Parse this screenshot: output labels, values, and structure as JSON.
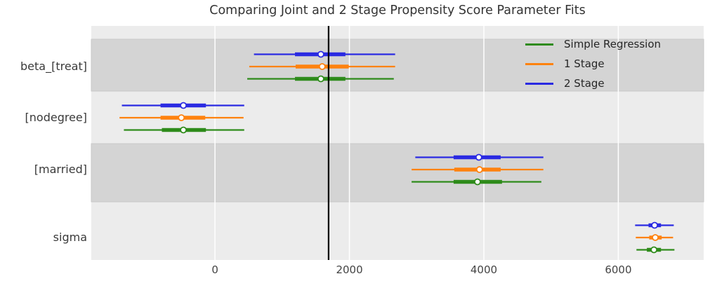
{
  "chart_data": {
    "type": "scatter",
    "subtype": "forest-plot-with-error-bars",
    "title": "Comparing Joint and 2 Stage Propensity Score Parameter Fits",
    "xlabel": "",
    "ylabel": "",
    "categories": [
      "beta_[treat]",
      "[nodegree]",
      "[married]",
      "sigma"
    ],
    "series": [
      {
        "name": "Simple Regression",
        "color": "#2e8b1a",
        "values": [
          {
            "lo": 480,
            "q1": 1190,
            "median": 1575,
            "q3": 1940,
            "hi": 2660
          },
          {
            "lo": -1355,
            "q1": -790,
            "median": -470,
            "q3": -135,
            "hi": 435
          },
          {
            "lo": 2925,
            "q1": 3550,
            "median": 3905,
            "q3": 4270,
            "hi": 4855
          },
          {
            "lo": 6270,
            "q1": 6425,
            "median": 6530,
            "q3": 6635,
            "hi": 6835
          }
        ]
      },
      {
        "name": "1 Stage",
        "color": "#ff820e",
        "values": [
          {
            "lo": 510,
            "q1": 1200,
            "median": 1595,
            "q3": 1990,
            "hi": 2680
          },
          {
            "lo": -1420,
            "q1": -810,
            "median": -500,
            "q3": -145,
            "hi": 425
          },
          {
            "lo": 2925,
            "q1": 3560,
            "median": 3935,
            "q3": 4250,
            "hi": 4885
          },
          {
            "lo": 6260,
            "q1": 6460,
            "median": 6550,
            "q3": 6645,
            "hi": 6815
          }
        ]
      },
      {
        "name": "2 Stage",
        "color": "#2a2ae2",
        "values": [
          {
            "lo": 580,
            "q1": 1190,
            "median": 1575,
            "q3": 1940,
            "hi": 2680
          },
          {
            "lo": -1385,
            "q1": -810,
            "median": -470,
            "q3": -135,
            "hi": 435
          },
          {
            "lo": 2980,
            "q1": 3550,
            "median": 3925,
            "q3": 4250,
            "hi": 4885
          },
          {
            "lo": 6250,
            "q1": 6450,
            "median": 6540,
            "q3": 6635,
            "hi": 6825
          }
        ]
      }
    ],
    "x_ticks": [
      0,
      2000,
      4000,
      6000
    ],
    "xlim": [
      -1840,
      7270
    ],
    "reference_line_x": 1690,
    "reference_line_color": "#000000",
    "grid": "vertical white gridlines on gray background",
    "legend_position": "upper right, no frame",
    "band_colors": {
      "light": "#ececec",
      "dark": "#d4d4d4"
    },
    "shaded_categories": [
      "beta_[treat]",
      "[married]"
    ],
    "marker": "white-filled circle with colored edge"
  }
}
